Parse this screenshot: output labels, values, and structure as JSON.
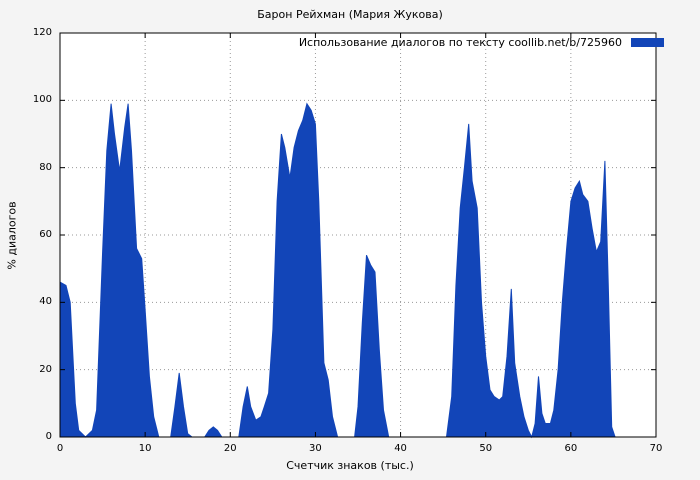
{
  "chart_data": {
    "type": "area",
    "title": "Барон Рейхман (Мария Жукова)",
    "legend_label": "Использование диалогов по тексту coollib.net/b/725960",
    "xlabel": "Счетчик знаков (тыс.)",
    "ylabel": "% диалогов",
    "xlim": [
      0,
      70
    ],
    "ylim": [
      0,
      120
    ],
    "xticks": [
      0,
      10,
      20,
      30,
      40,
      50,
      60,
      70
    ],
    "yticks": [
      0,
      20,
      40,
      60,
      80,
      100,
      120
    ],
    "grid": true,
    "legend_position": "top-right",
    "colors": {
      "fill": "#1245b8",
      "figure_bg": "#f4f4f4",
      "plot_bg": "#ffffff",
      "grid": "#9a9a9a",
      "axis": "#000000"
    },
    "points": [
      [
        0,
        46
      ],
      [
        0.7,
        45
      ],
      [
        1.2,
        40
      ],
      [
        1.8,
        10
      ],
      [
        2.2,
        2
      ],
      [
        3,
        0
      ],
      [
        3.8,
        2
      ],
      [
        4.3,
        8
      ],
      [
        5,
        55
      ],
      [
        5.5,
        85
      ],
      [
        6,
        99
      ],
      [
        6.4,
        90
      ],
      [
        7,
        79
      ],
      [
        7.6,
        92
      ],
      [
        8,
        99
      ],
      [
        8.4,
        85
      ],
      [
        9,
        56
      ],
      [
        9.6,
        53
      ],
      [
        10,
        38
      ],
      [
        10.5,
        18
      ],
      [
        11,
        6
      ],
      [
        11.6,
        0
      ],
      [
        13,
        0
      ],
      [
        13.5,
        9
      ],
      [
        14,
        19
      ],
      [
        14.5,
        9
      ],
      [
        15,
        1
      ],
      [
        15.5,
        0
      ],
      [
        17,
        0
      ],
      [
        17.5,
        2
      ],
      [
        18,
        3
      ],
      [
        18.5,
        2
      ],
      [
        19,
        0
      ],
      [
        21,
        0
      ],
      [
        21.5,
        9
      ],
      [
        22,
        15
      ],
      [
        22.4,
        9
      ],
      [
        23,
        5
      ],
      [
        23.6,
        6
      ],
      [
        24,
        9
      ],
      [
        24.5,
        13
      ],
      [
        25,
        32
      ],
      [
        25.5,
        70
      ],
      [
        26,
        90
      ],
      [
        26.4,
        86
      ],
      [
        27,
        77
      ],
      [
        27.5,
        86
      ],
      [
        28,
        91
      ],
      [
        28.5,
        94
      ],
      [
        29,
        99
      ],
      [
        29.5,
        97
      ],
      [
        30,
        93
      ],
      [
        30.4,
        70
      ],
      [
        31,
        22
      ],
      [
        31.5,
        17
      ],
      [
        32,
        6
      ],
      [
        32.6,
        0
      ],
      [
        34.6,
        0
      ],
      [
        35,
        9
      ],
      [
        35.5,
        34
      ],
      [
        36,
        54
      ],
      [
        36.5,
        51
      ],
      [
        37,
        49
      ],
      [
        37.5,
        26
      ],
      [
        38,
        8
      ],
      [
        38.6,
        0
      ],
      [
        45.4,
        0
      ],
      [
        46,
        12
      ],
      [
        46.5,
        45
      ],
      [
        47,
        68
      ],
      [
        47.5,
        80
      ],
      [
        48,
        93
      ],
      [
        48.4,
        76
      ],
      [
        49,
        68
      ],
      [
        49.5,
        40
      ],
      [
        50,
        24
      ],
      [
        50.5,
        14
      ],
      [
        51,
        12
      ],
      [
        51.6,
        11
      ],
      [
        52,
        12
      ],
      [
        52.5,
        24
      ],
      [
        53,
        44
      ],
      [
        53.4,
        22
      ],
      [
        54,
        12
      ],
      [
        54.5,
        6
      ],
      [
        55,
        2
      ],
      [
        55.4,
        0
      ],
      [
        55.8,
        4
      ],
      [
        56.2,
        18
      ],
      [
        56.6,
        7
      ],
      [
        57,
        4
      ],
      [
        57.6,
        4
      ],
      [
        58,
        8
      ],
      [
        58.5,
        20
      ],
      [
        59,
        40
      ],
      [
        59.5,
        56
      ],
      [
        60,
        70
      ],
      [
        60.5,
        74
      ],
      [
        61,
        76
      ],
      [
        61.4,
        72
      ],
      [
        62,
        70
      ],
      [
        62.5,
        62
      ],
      [
        63,
        55
      ],
      [
        63.5,
        58
      ],
      [
        64,
        82
      ],
      [
        64.4,
        45
      ],
      [
        64.8,
        3
      ],
      [
        65.2,
        0
      ],
      [
        66,
        0
      ]
    ]
  }
}
